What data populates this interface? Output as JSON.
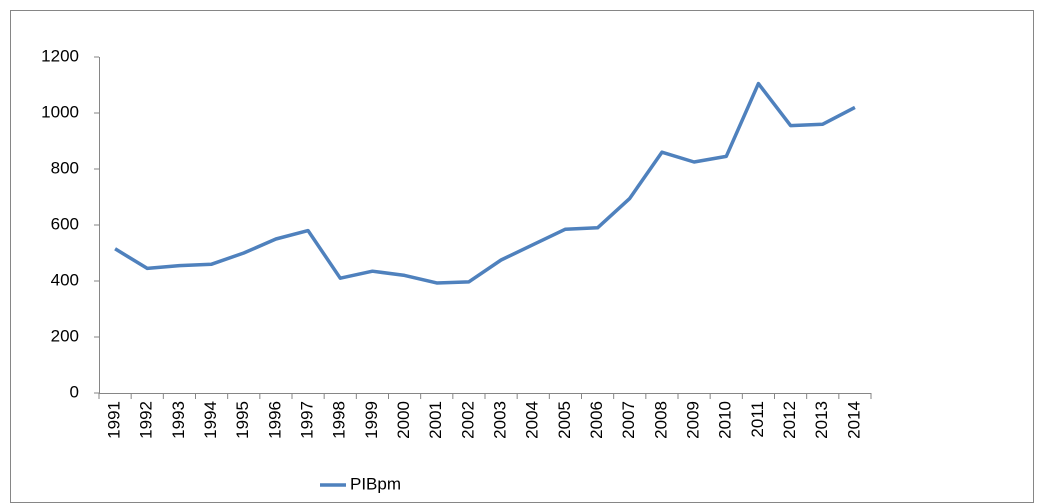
{
  "chart_data": {
    "type": "line",
    "categories": [
      "1991",
      "1992",
      "1993",
      "1994",
      "1995",
      "1996",
      "1997",
      "1998",
      "1999",
      "2000",
      "2001",
      "2002",
      "2003",
      "2004",
      "2005",
      "2006",
      "2007",
      "2008",
      "2009",
      "2010",
      "2011",
      "2012",
      "2013",
      "2014"
    ],
    "series": [
      {
        "name": "PIBpm",
        "color": "#4f81bd",
        "values": [
          515,
          445,
          455,
          460,
          500,
          550,
          580,
          410,
          435,
          420,
          393,
          397,
          475,
          530,
          585,
          590,
          695,
          860,
          825,
          845,
          1105,
          955,
          960,
          1020
        ]
      }
    ],
    "ylim": [
      0,
      1200
    ],
    "yticks": [
      0,
      200,
      400,
      600,
      800,
      1000,
      1200
    ],
    "grid": false,
    "legend": "bottom"
  }
}
